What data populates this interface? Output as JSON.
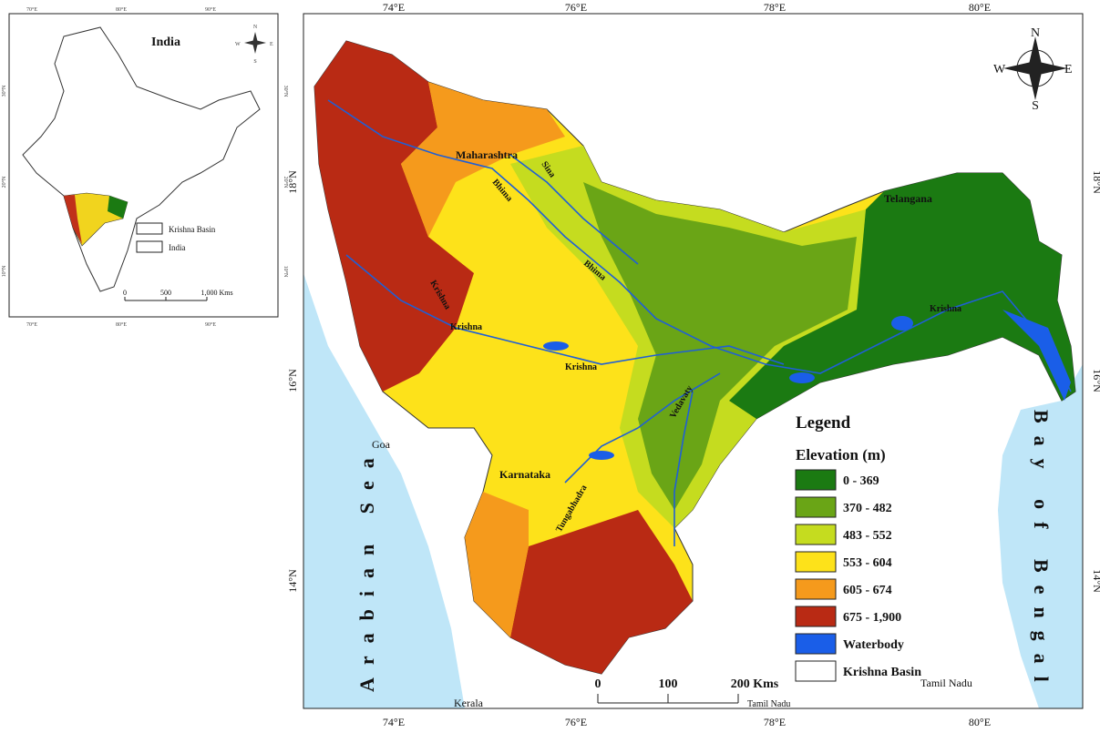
{
  "inset": {
    "title": "India",
    "graticule_top": [
      "70°E",
      "80°E",
      "90°E"
    ],
    "graticule_bottom": [
      "70°E",
      "80°E",
      "90°E"
    ],
    "graticule_left": [
      "30°N",
      "20°N",
      "10°N"
    ],
    "graticule_right": [
      "30°N",
      "20°N",
      "10°N"
    ],
    "legend": [
      "Krishna Basin",
      "India"
    ],
    "scale": [
      "0",
      "500",
      "1,000 Kms"
    ],
    "compass": {
      "n": "N",
      "s": "S",
      "e": "E",
      "w": "W"
    }
  },
  "map": {
    "graticule_top": [
      "74°E",
      "76°E",
      "78°E",
      "80°E"
    ],
    "graticule_bottom": [
      "74°E",
      "76°E",
      "78°E",
      "80°E"
    ],
    "graticule_left": [
      "18°N",
      "16°N",
      "14°N"
    ],
    "graticule_right": [
      "18°N",
      "16°N",
      "14°N"
    ],
    "places": [
      "Maharashtra",
      "Telangana",
      "Karnataka",
      "Goa",
      "Kerala",
      "Tamil Nadu",
      "Tamil Nadu"
    ],
    "rivers": [
      "Bhima",
      "Sina",
      "Bhima",
      "Krishna",
      "Krishna",
      "Krishna",
      "Krishna",
      "Tungabhadra",
      "Vedavaty"
    ],
    "seas": [
      "Arabian Sea",
      "Bay of Bengal"
    ],
    "compass": {
      "n": "N",
      "s": "S",
      "e": "E",
      "w": "W"
    },
    "legend": {
      "title": "Legend",
      "subtitle": "Elevation (m)",
      "items": [
        {
          "label": "0 - 369",
          "color": "#1b7a12"
        },
        {
          "label": "370 - 482",
          "color": "#6aa516"
        },
        {
          "label": "483 - 552",
          "color": "#c5dc1f"
        },
        {
          "label": "553 - 604",
          "color": "#fde21a"
        },
        {
          "label": "605 - 674",
          "color": "#f59a1c"
        },
        {
          "label": "675 - 1,900",
          "color": "#b92a14"
        },
        {
          "label": "Waterbody",
          "color": "#1a5ee8"
        },
        {
          "label": "Krishna Basin",
          "color": "#ffffff"
        }
      ]
    },
    "scale": [
      "0",
      "100",
      "200 Kms"
    ]
  }
}
